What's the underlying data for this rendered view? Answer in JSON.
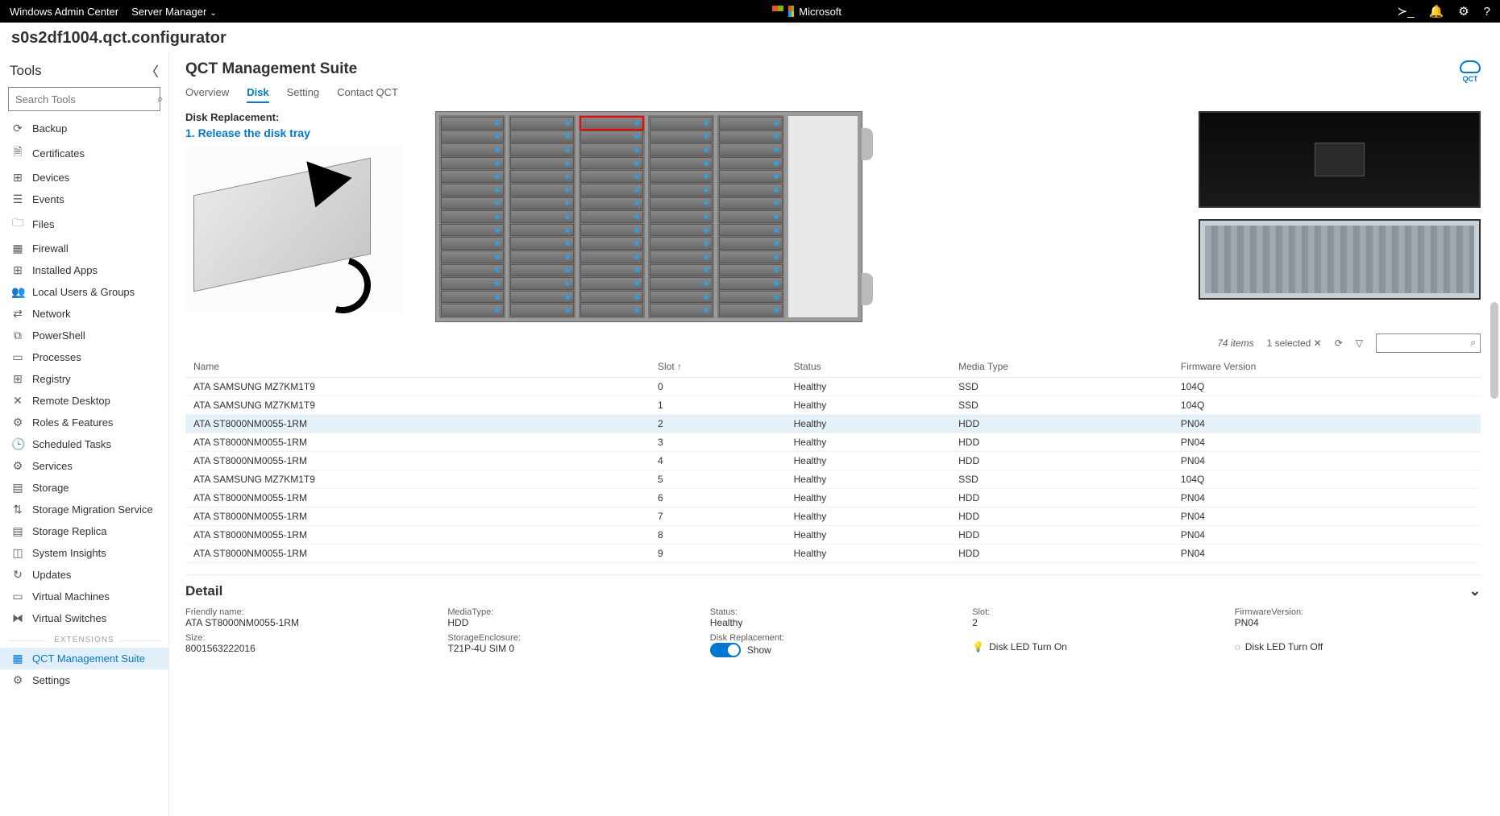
{
  "topbar": {
    "app": "Windows Admin Center",
    "menu": "Server Manager",
    "brand": "Microsoft"
  },
  "server_name": "s0s2df1004.qct.configurator",
  "sidebar": {
    "title": "Tools",
    "search_placeholder": "Search Tools",
    "items": [
      {
        "icon": "⟳",
        "label": "Backup"
      },
      {
        "icon": "🗎",
        "label": "Certificates"
      },
      {
        "icon": "⊞",
        "label": "Devices"
      },
      {
        "icon": "☰",
        "label": "Events"
      },
      {
        "icon": "🗀",
        "label": "Files"
      },
      {
        "icon": "▦",
        "label": "Firewall"
      },
      {
        "icon": "⊞",
        "label": "Installed Apps"
      },
      {
        "icon": "👥",
        "label": "Local Users & Groups"
      },
      {
        "icon": "⇄",
        "label": "Network"
      },
      {
        "icon": "⧉",
        "label": "PowerShell"
      },
      {
        "icon": "▭",
        "label": "Processes"
      },
      {
        "icon": "⊞",
        "label": "Registry"
      },
      {
        "icon": "✕",
        "label": "Remote Desktop"
      },
      {
        "icon": "⚙",
        "label": "Roles & Features"
      },
      {
        "icon": "🕒",
        "label": "Scheduled Tasks"
      },
      {
        "icon": "⚙",
        "label": "Services"
      },
      {
        "icon": "▤",
        "label": "Storage"
      },
      {
        "icon": "⇅",
        "label": "Storage Migration Service"
      },
      {
        "icon": "▤",
        "label": "Storage Replica"
      },
      {
        "icon": "◫",
        "label": "System Insights"
      },
      {
        "icon": "↻",
        "label": "Updates"
      },
      {
        "icon": "▭",
        "label": "Virtual Machines"
      },
      {
        "icon": "⧓",
        "label": "Virtual Switches"
      }
    ],
    "ext_label": "EXTENSIONS",
    "ext_items": [
      {
        "icon": "▦",
        "label": "QCT Management Suite",
        "active": true
      },
      {
        "icon": "⚙",
        "label": "Settings"
      }
    ]
  },
  "page": {
    "title": "QCT Management Suite",
    "badge": "QCT",
    "tabs": [
      "Overview",
      "Disk",
      "Setting",
      "Contact QCT"
    ],
    "active_tab": 1
  },
  "disk_repl": {
    "heading": "Disk Replacement:",
    "step": "1. Release the disk tray",
    "highlighted_slot": 2
  },
  "chassis": {
    "columns": 5,
    "rows_per_col": 15
  },
  "table": {
    "item_count": "74 items",
    "selected": "1 selected",
    "columns": [
      "Name",
      "Slot ↑",
      "Status",
      "Media Type",
      "Firmware Version"
    ],
    "rows": [
      {
        "name": "ATA SAMSUNG MZ7KM1T9",
        "slot": "0",
        "status": "Healthy",
        "media": "SSD",
        "fw": "104Q"
      },
      {
        "name": "ATA SAMSUNG MZ7KM1T9",
        "slot": "1",
        "status": "Healthy",
        "media": "SSD",
        "fw": "104Q"
      },
      {
        "name": "ATA ST8000NM0055-1RM",
        "slot": "2",
        "status": "Healthy",
        "media": "HDD",
        "fw": "PN04",
        "sel": true
      },
      {
        "name": "ATA ST8000NM0055-1RM",
        "slot": "3",
        "status": "Healthy",
        "media": "HDD",
        "fw": "PN04"
      },
      {
        "name": "ATA ST8000NM0055-1RM",
        "slot": "4",
        "status": "Healthy",
        "media": "HDD",
        "fw": "PN04"
      },
      {
        "name": "ATA SAMSUNG MZ7KM1T9",
        "slot": "5",
        "status": "Healthy",
        "media": "SSD",
        "fw": "104Q"
      },
      {
        "name": "ATA ST8000NM0055-1RM",
        "slot": "6",
        "status": "Healthy",
        "media": "HDD",
        "fw": "PN04"
      },
      {
        "name": "ATA ST8000NM0055-1RM",
        "slot": "7",
        "status": "Healthy",
        "media": "HDD",
        "fw": "PN04"
      },
      {
        "name": "ATA ST8000NM0055-1RM",
        "slot": "8",
        "status": "Healthy",
        "media": "HDD",
        "fw": "PN04"
      },
      {
        "name": "ATA ST8000NM0055-1RM",
        "slot": "9",
        "status": "Healthy",
        "media": "HDD",
        "fw": "PN04"
      }
    ]
  },
  "detail": {
    "title": "Detail",
    "friendly_name_lbl": "Friendly name:",
    "friendly_name": "ATA ST8000NM0055-1RM",
    "size_lbl": "Size:",
    "size": "8001563222016",
    "media_lbl": "MediaType:",
    "media": "HDD",
    "enclosure_lbl": "StorageEnclosure:",
    "enclosure": "T21P-4U SIM 0",
    "status_lbl": "Status:",
    "status": "Healthy",
    "repl_lbl": "Disk Replacement:",
    "repl_toggle": "Show",
    "slot_lbl": "Slot:",
    "slot": "2",
    "led_on": "Disk LED Turn On",
    "fw_lbl": "FirmwareVersion:",
    "fw": "PN04",
    "led_off": "Disk LED Turn Off"
  },
  "colors": {
    "accent": "#0078d4",
    "selected_row": "#e6f2fa",
    "highlight": "#ff0000"
  }
}
